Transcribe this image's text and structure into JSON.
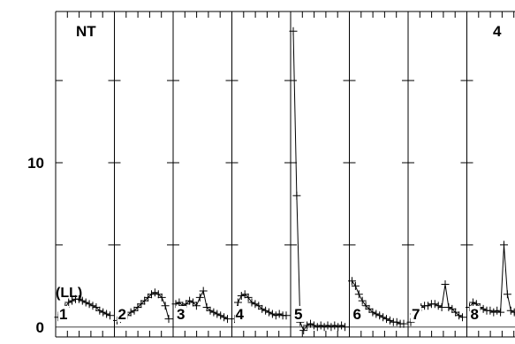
{
  "chart_data": {
    "type": "line",
    "title": "",
    "corner_labels": {
      "left": "NT",
      "right": "4"
    },
    "unit_label": "(LL)",
    "ylim": [
      -0.6,
      19.2
    ],
    "y_ticks": [
      0,
      10
    ],
    "y_tick_labels": [
      "0",
      "10"
    ],
    "panel_labels": [
      "1",
      "2",
      "3",
      "4",
      "5",
      "6",
      "7",
      "8"
    ],
    "series": [
      {
        "panel": "1",
        "values": [
          0.6,
          0.9,
          1.2,
          1.5,
          1.6,
          1.7,
          1.7,
          1.6,
          1.5,
          1.4,
          1.3,
          1.2,
          1.0,
          0.9,
          0.8,
          0.7
        ]
      },
      {
        "panel": "2",
        "values": [
          0.4,
          0.5,
          0.6,
          0.7,
          0.9,
          1.0,
          1.2,
          1.4,
          1.6,
          1.8,
          2.0,
          2.1,
          2.0,
          1.8,
          1.3,
          0.5
        ]
      },
      {
        "panel": "3",
        "values": [
          1.4,
          1.5,
          1.3,
          1.4,
          1.6,
          1.5,
          1.3,
          1.8,
          2.2,
          1.2,
          1.0,
          0.9,
          0.8,
          0.7,
          0.6,
          0.5
        ]
      },
      {
        "panel": "4",
        "values": [
          0.5,
          1.5,
          1.9,
          2.0,
          1.8,
          1.5,
          1.4,
          1.3,
          1.1,
          1.0,
          0.9,
          0.8,
          0.7,
          0.8,
          0.7,
          0.7
        ]
      },
      {
        "panel": "5",
        "values": [
          18.0,
          8.0,
          0.3,
          -0.2,
          0.1,
          0.2,
          0.1,
          0.0,
          0.1,
          0.0,
          0.1,
          0.0,
          0.1,
          0.0,
          0.1,
          0.0
        ]
      },
      {
        "panel": "6",
        "values": [
          2.8,
          2.5,
          2.0,
          1.6,
          1.3,
          1.1,
          0.9,
          0.8,
          0.7,
          0.6,
          0.5,
          0.4,
          0.3,
          0.3,
          0.2,
          0.2
        ]
      },
      {
        "panel": "7",
        "values": [
          0.3,
          0.8,
          1.0,
          1.2,
          1.3,
          1.3,
          1.4,
          1.4,
          1.3,
          1.2,
          2.6,
          1.2,
          1.1,
          0.9,
          0.7,
          0.6
        ]
      },
      {
        "panel": "8",
        "values": [
          1.2,
          1.5,
          1.4,
          1.2,
          1.1,
          1.0,
          1.0,
          0.9,
          1.0,
          0.9,
          5.0,
          2.0,
          1.0,
          0.9,
          0.8,
          0.5
        ]
      }
    ],
    "grid": false,
    "marker": "plus"
  }
}
